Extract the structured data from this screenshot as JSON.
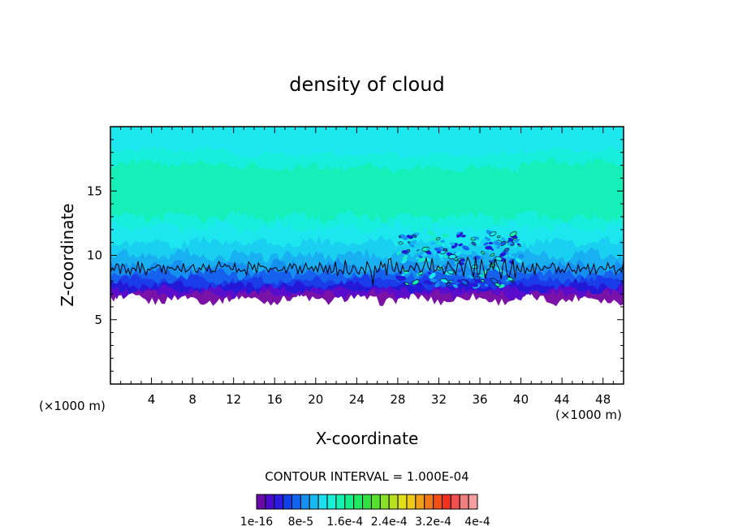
{
  "chart_data": {
    "type": "contour",
    "title": "density of cloud",
    "xlabel": "X-coordinate",
    "ylabel": "Z-coordinate",
    "x_unit_left": "(×1000 m)",
    "x_unit_right": "(×1000 m)",
    "xlim": [
      0,
      50
    ],
    "ylim": [
      0,
      20
    ],
    "x_ticks": [
      4,
      8,
      12,
      16,
      20,
      24,
      28,
      32,
      36,
      40,
      44,
      48
    ],
    "y_ticks": [
      5,
      10,
      15
    ],
    "contour_interval_label": "CONTOUR INTERVAL = 1.000E-04",
    "colorbar": {
      "colors": [
        "#6a0aa8",
        "#4b0ad0",
        "#2a1ae0",
        "#1040e8",
        "#1264f0",
        "#1690f0",
        "#18b8f0",
        "#1ce0f0",
        "#18f0d8",
        "#16f0b0",
        "#16ee88",
        "#20e860",
        "#30e040",
        "#58e030",
        "#88e028",
        "#b8e020",
        "#e0e018",
        "#f0c818",
        "#f0a018",
        "#f07818",
        "#f05018",
        "#f03020",
        "#f05050",
        "#f08080",
        "#f4a0a0"
      ],
      "tick_labels": [
        "1e-16",
        "8e-5",
        "1.6e-4",
        "2.4e-4",
        "3.2e-4",
        "4e-4"
      ]
    },
    "field_summary": {
      "cloud_base_z": 6.8,
      "dense_layer_top_z": 9.0,
      "cloud_top_z": 20,
      "black_contour_z": 9.0,
      "turbulent_region_x": [
        28,
        40
      ]
    }
  }
}
